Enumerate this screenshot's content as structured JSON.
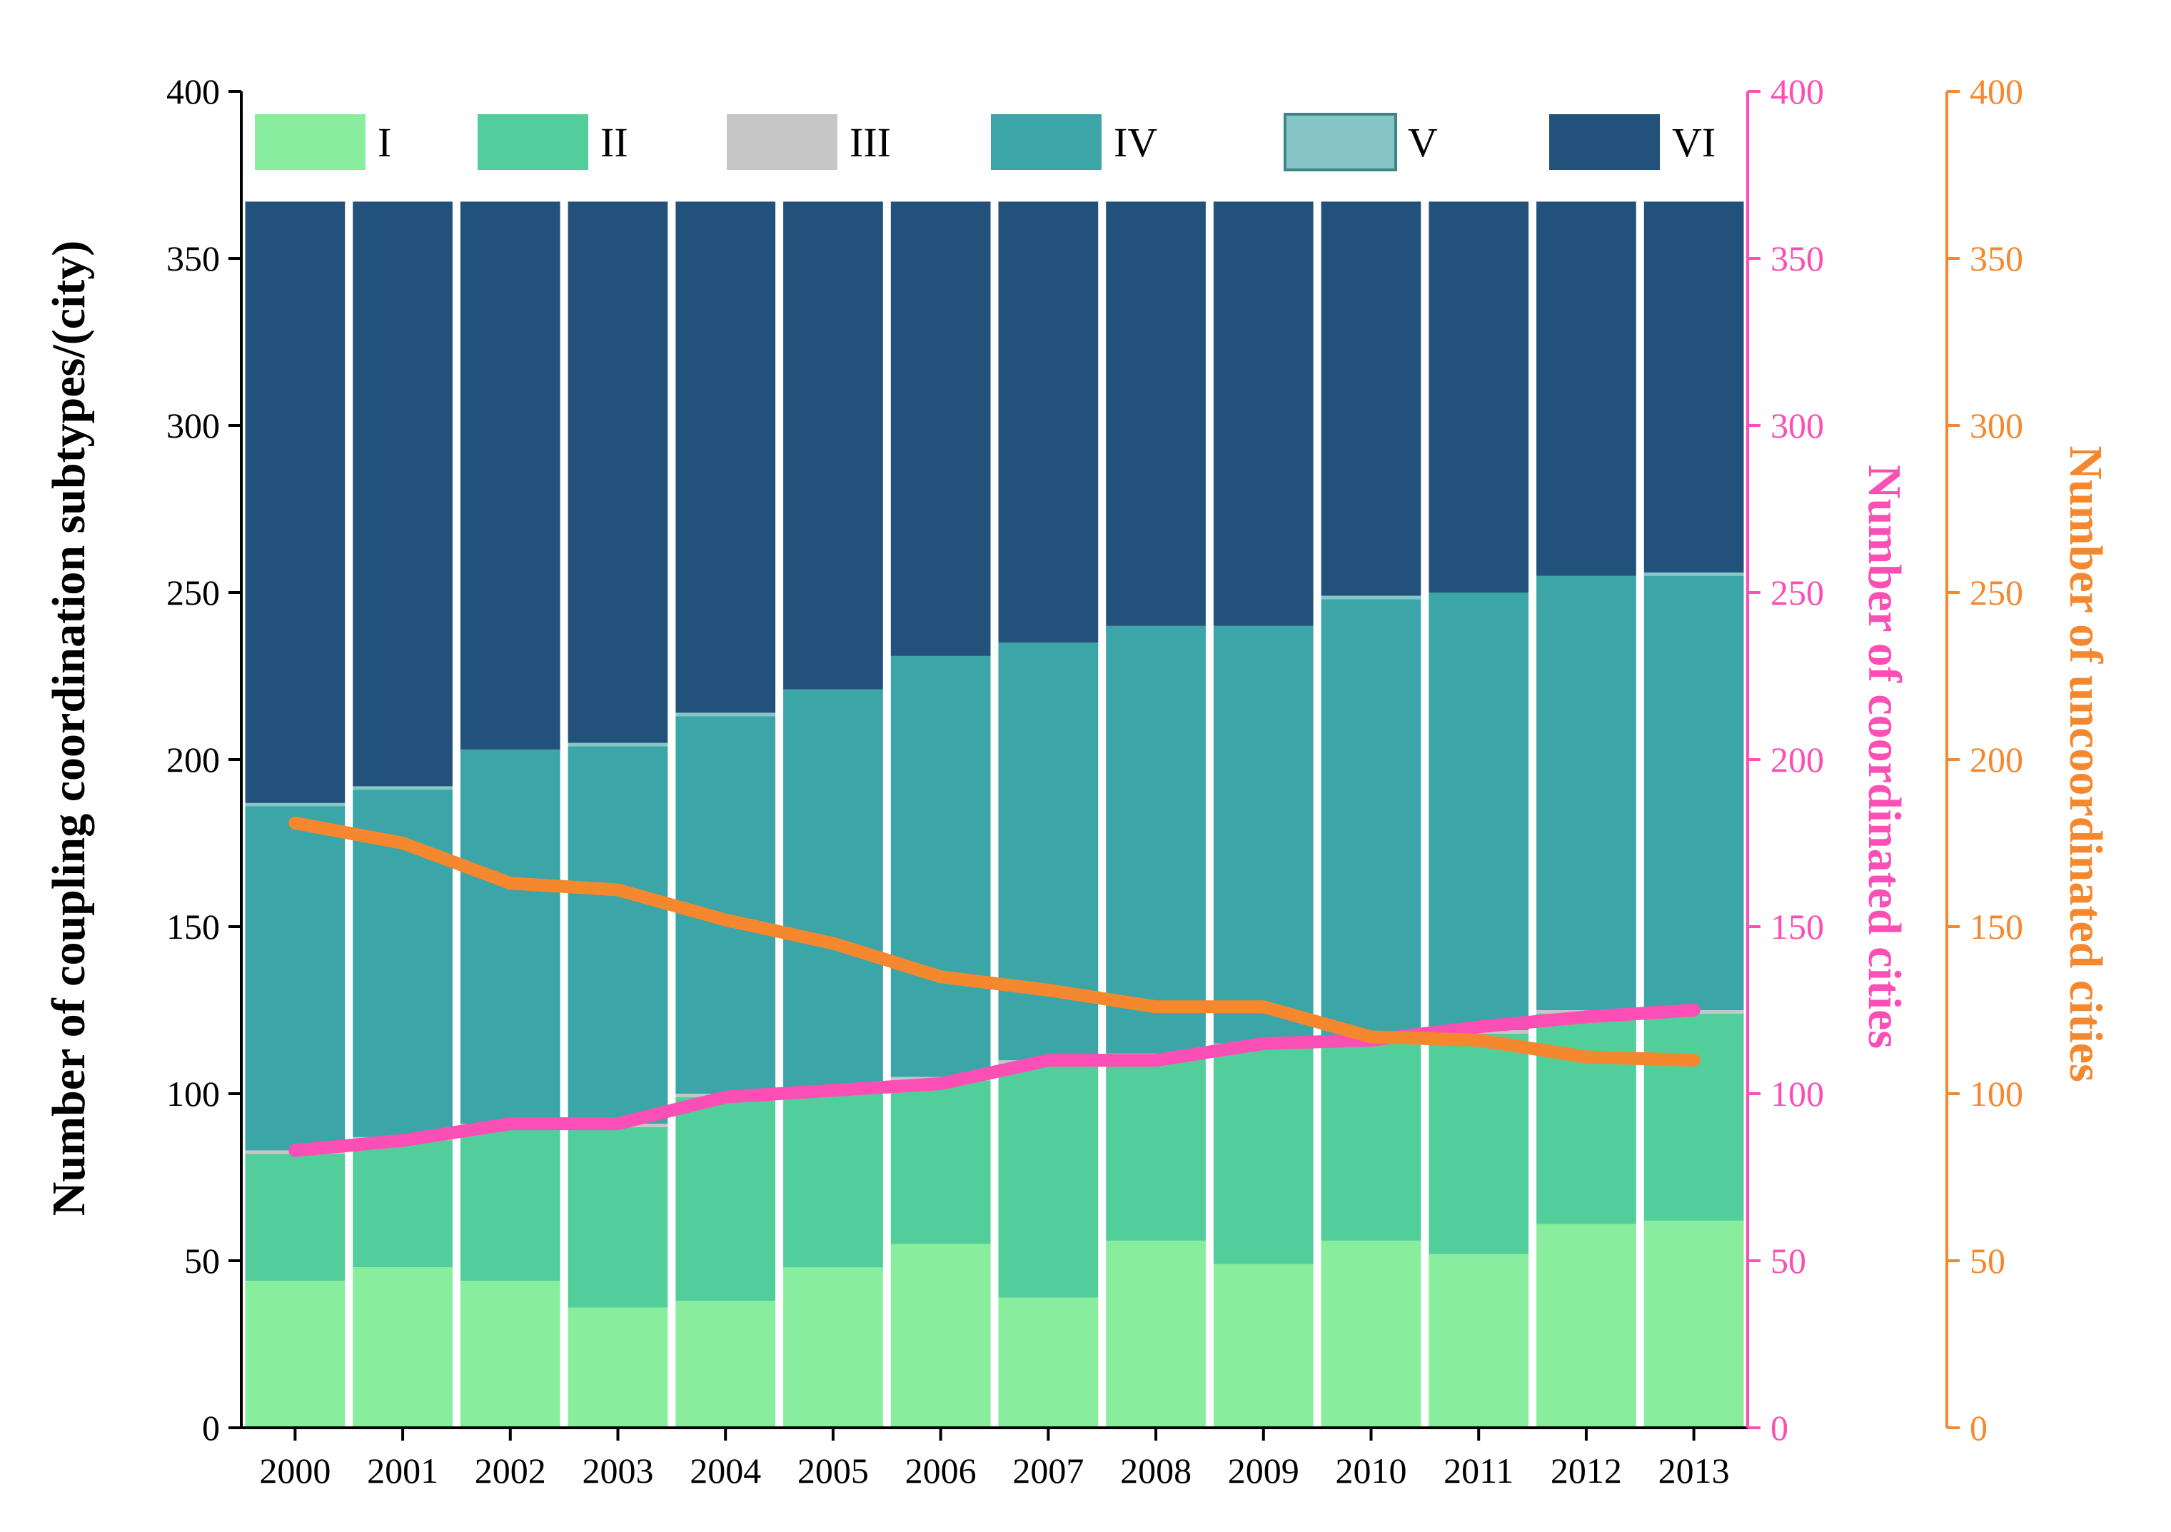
{
  "colors": {
    "I": "#88ee9e",
    "II": "#52ce9a",
    "III": "#c6c6c6",
    "IV": "#3ba5a7",
    "V": "#86c6c6",
    "VI": "#22527c",
    "coordinated": "#fb4fb6",
    "uncoordinated": "#f5882e",
    "axis": "#000000"
  },
  "chart_data": {
    "type": "bar",
    "stacked": true,
    "title": "",
    "xlabel": "",
    "ylabel": "Number of coupling coordination subtypes/(city)",
    "ylabel_right_1": "Number of coordinated cities",
    "ylabel_right_2": "Number of uncoordinated cities",
    "ylim": [
      0,
      400
    ],
    "y_ticks": [
      "0",
      "50",
      "100",
      "150",
      "200",
      "250",
      "300",
      "350",
      "400"
    ],
    "categories": [
      "2000",
      "2001",
      "2002",
      "2003",
      "2004",
      "2005",
      "2006",
      "2007",
      "2008",
      "2009",
      "2010",
      "2011",
      "2012",
      "2013"
    ],
    "legend": {
      "position": "top",
      "entries": [
        "I",
        "II",
        "III",
        "IV",
        "V",
        "VI"
      ]
    },
    "series": [
      {
        "name": "I",
        "color_key": "I",
        "values": [
          44,
          48,
          44,
          36,
          38,
          48,
          55,
          39,
          56,
          49,
          56,
          52,
          61,
          62
        ]
      },
      {
        "name": "II",
        "color_key": "II",
        "values": [
          38,
          38,
          46,
          54,
          61,
          52,
          49,
          70,
          55,
          65,
          59,
          66,
          63,
          62
        ]
      },
      {
        "name": "III",
        "color_key": "III",
        "values": [
          1,
          1,
          1,
          1,
          1,
          1,
          1,
          1,
          1,
          1,
          1,
          1,
          1,
          1
        ]
      },
      {
        "name": "IV",
        "color_key": "IV",
        "values": [
          103,
          104,
          112,
          113,
          113,
          120,
          126,
          125,
          128,
          125,
          132,
          131,
          130,
          130
        ]
      },
      {
        "name": "V",
        "color_key": "V",
        "values": [
          1,
          1,
          0,
          1,
          1,
          0,
          0,
          0,
          0,
          0,
          1,
          0,
          0,
          1
        ]
      },
      {
        "name": "VI",
        "color_key": "VI",
        "values": [
          180,
          175,
          164,
          162,
          153,
          146,
          136,
          132,
          127,
          127,
          118,
          117,
          112,
          111
        ]
      }
    ],
    "lines": [
      {
        "name": "Number of coordinated cities",
        "axis": "right1",
        "color_key": "coordinated",
        "values": [
          83,
          86,
          91,
          91,
          99,
          101,
          103,
          110,
          110,
          115,
          116,
          120,
          123,
          125
        ]
      },
      {
        "name": "Number of uncoordinated cities",
        "axis": "right2",
        "color_key": "uncoordinated",
        "values": [
          181,
          175,
          163,
          161,
          152,
          145,
          135,
          131,
          126,
          126,
          117,
          116,
          111,
          110
        ]
      }
    ]
  }
}
